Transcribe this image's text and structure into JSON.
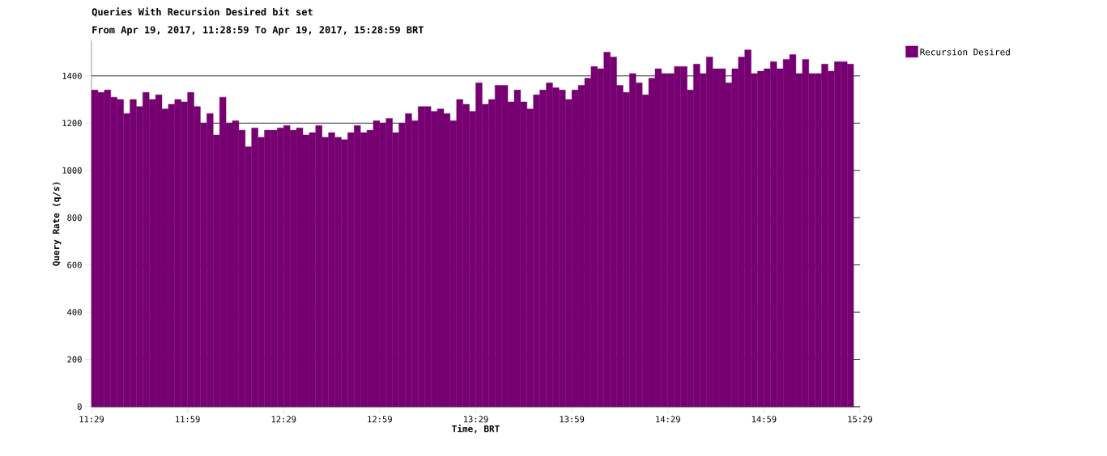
{
  "chart_data": {
    "type": "bar",
    "title": "Queries With Recursion Desired bit set",
    "subtitle": "From Apr 19, 2017, 11:28:59 To Apr 19, 2017, 15:28:59 BRT",
    "xlabel": "Time, BRT",
    "ylabel": "Query Rate (q/s)",
    "x": [
      11.5,
      11.5333,
      11.5667,
      11.6,
      11.6333,
      11.6667,
      11.7,
      11.7333,
      11.7667,
      11.8,
      11.8333,
      11.8667,
      11.9,
      11.9333,
      11.9667,
      12,
      12.0333,
      12.0667,
      12.1,
      12.1333,
      12.1667,
      12.2,
      12.2333,
      12.2667,
      12.3,
      12.3333,
      12.3667,
      12.4,
      12.4333,
      12.4667,
      12.5,
      12.5333,
      12.5667,
      12.6,
      12.6333,
      12.6667,
      12.7,
      12.7333,
      12.7667,
      12.8,
      12.8333,
      12.8667,
      12.9,
      12.9333,
      12.9667,
      13,
      13.0333,
      13.0667,
      13.1,
      13.1333,
      13.1667,
      13.2,
      13.2333,
      13.2667,
      13.3,
      13.3333,
      13.3667,
      13.4,
      13.4333,
      13.4667,
      13.5,
      13.5333,
      13.5667,
      13.6,
      13.6333,
      13.6667,
      13.7,
      13.7333,
      13.7667,
      13.8,
      13.8333,
      13.8667,
      13.9,
      13.9333,
      13.9667,
      14,
      14.0333,
      14.0667,
      14.1,
      14.1333,
      14.1667,
      14.2,
      14.2333,
      14.2667,
      14.3,
      14.3333,
      14.3667,
      14.4,
      14.4333,
      14.4667,
      14.5,
      14.5333,
      14.5667,
      14.6,
      14.6333,
      14.6667,
      14.7,
      14.7333,
      14.7667,
      14.8,
      14.8333,
      14.8667,
      14.9,
      14.9333,
      14.9667,
      15,
      15.0333,
      15.0667,
      15.1,
      15.1333,
      15.1667,
      15.2,
      15.2333,
      15.2667,
      15.3,
      15.3333,
      15.3667,
      15.4,
      15.4333
    ],
    "series": [
      {
        "name": "Recursion Desired",
        "color": "#760071",
        "values": [
          1340,
          1330,
          1340,
          1310,
          1300,
          1240,
          1300,
          1270,
          1330,
          1300,
          1320,
          1260,
          1280,
          1300,
          1290,
          1330,
          1270,
          1200,
          1240,
          1150,
          1310,
          1200,
          1210,
          1170,
          1100,
          1180,
          1140,
          1170,
          1170,
          1180,
          1190,
          1170,
          1180,
          1150,
          1160,
          1190,
          1140,
          1160,
          1140,
          1130,
          1160,
          1190,
          1160,
          1170,
          1210,
          1200,
          1220,
          1160,
          1200,
          1240,
          1210,
          1270,
          1270,
          1250,
          1260,
          1240,
          1210,
          1300,
          1280,
          1250,
          1370,
          1280,
          1300,
          1360,
          1360,
          1290,
          1340,
          1290,
          1260,
          1320,
          1340,
          1370,
          1350,
          1340,
          1300,
          1340,
          1360,
          1390,
          1440,
          1430,
          1500,
          1480,
          1360,
          1330,
          1410,
          1370,
          1320,
          1390,
          1430,
          1410,
          1410,
          1440,
          1440,
          1340,
          1450,
          1410,
          1480,
          1430,
          1430,
          1370,
          1430,
          1480,
          1510,
          1410,
          1420,
          1430,
          1460,
          1430,
          1470,
          1490,
          1410,
          1470,
          1410,
          1410,
          1450,
          1420,
          1460,
          1460,
          1450
        ]
      }
    ],
    "xlim": [
      11.4833,
      15.4833
    ],
    "xticks": [
      {
        "value": 11.4833,
        "label": "11:29"
      },
      {
        "value": 11.9833,
        "label": "11:59"
      },
      {
        "value": 12.4833,
        "label": "12:29"
      },
      {
        "value": 12.9833,
        "label": "12:59"
      },
      {
        "value": 13.4833,
        "label": "13:29"
      },
      {
        "value": 13.9833,
        "label": "13:59"
      },
      {
        "value": 14.4833,
        "label": "14:29"
      },
      {
        "value": 14.9833,
        "label": "14:59"
      },
      {
        "value": 15.4833,
        "label": "15:29"
      }
    ],
    "ylim": [
      0,
      1550
    ],
    "yticks": [
      0,
      200,
      400,
      600,
      800,
      1000,
      1200,
      1400
    ],
    "grid": "y",
    "legend": "right"
  }
}
